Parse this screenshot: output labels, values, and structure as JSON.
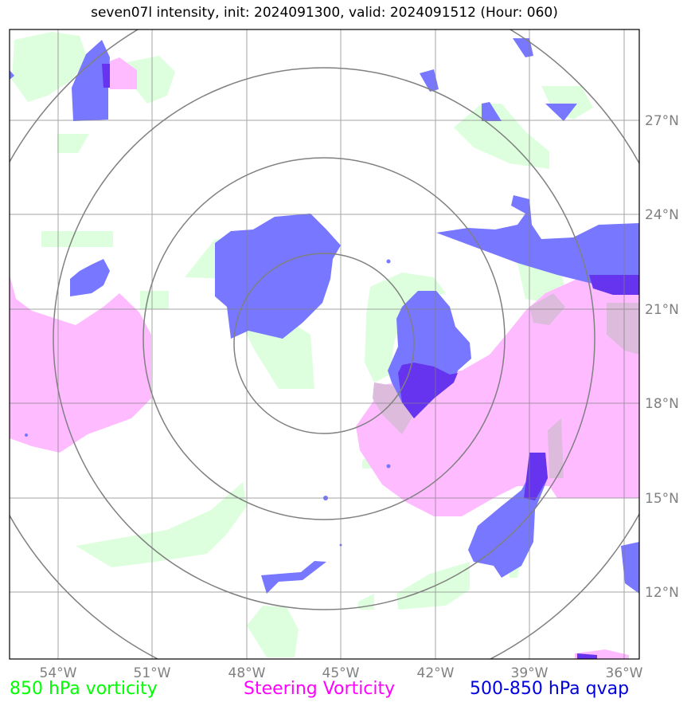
{
  "title": "seven07l intensity, init: 2024091300, valid: 2024091512 (Hour: 060)",
  "lon_labels": [
    "54°W",
    "51°W",
    "48°W",
    "45°W",
    "42°W",
    "39°W",
    "36°W"
  ],
  "lat_labels": [
    "27°N",
    "24°N",
    "21°N",
    "18°N",
    "15°N",
    "12°N"
  ],
  "legend": {
    "green": {
      "label": "850 hPa vorticity",
      "color": "#00ff00"
    },
    "magenta": {
      "label": "Steering Vorticity",
      "color": "#ff00ff"
    },
    "blue": {
      "label": "500-850 hPa qvap",
      "color": "#0000dd"
    }
  },
  "colors": {
    "green_fill": "#ddffdd",
    "magenta_fill": "#ffbbff",
    "blue_fill": "#7777ff",
    "dark_blue_fill": "#6633ee",
    "grid": "#808080",
    "range_rings": "#808080"
  }
}
